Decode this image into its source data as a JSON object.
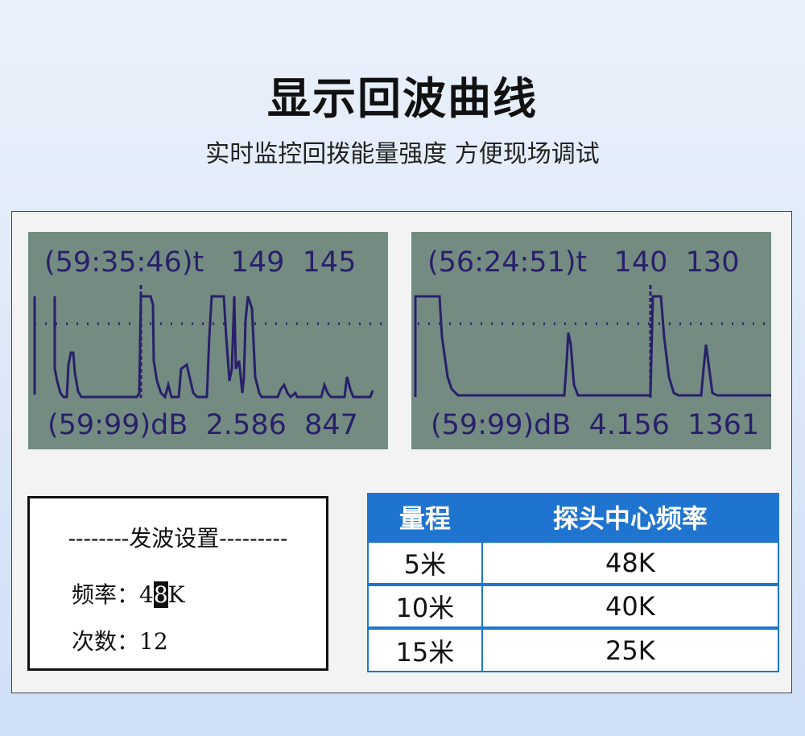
{
  "header": {
    "title": "显示回波曲线",
    "subtitle": "实时监控回拨能量强度 方便现场调试"
  },
  "lcd_left": {
    "top": "(59:35:46)t   149  145",
    "bottom": "(59:99)dB  2.586  847"
  },
  "lcd_right": {
    "top": "(56:24:51)t   140  130",
    "bottom": "(59:99)dB  4.156  1361"
  },
  "settings": {
    "heading": "--------发波设置---------",
    "freq_label": "频率：",
    "freq_pre": "4",
    "freq_cursor": "8",
    "freq_post": "K",
    "count_label": "次数：",
    "count_value": "12"
  },
  "table": {
    "headers": [
      "量程",
      "探头中心频率"
    ],
    "rows": [
      [
        "5米",
        "48K"
      ],
      [
        "10米",
        "40K"
      ],
      [
        "15米",
        "25K"
      ]
    ]
  },
  "colors": {
    "lcd_bg": "#738b81",
    "lcd_ink": "#2a1f6b",
    "accent": "#1f74cf"
  }
}
